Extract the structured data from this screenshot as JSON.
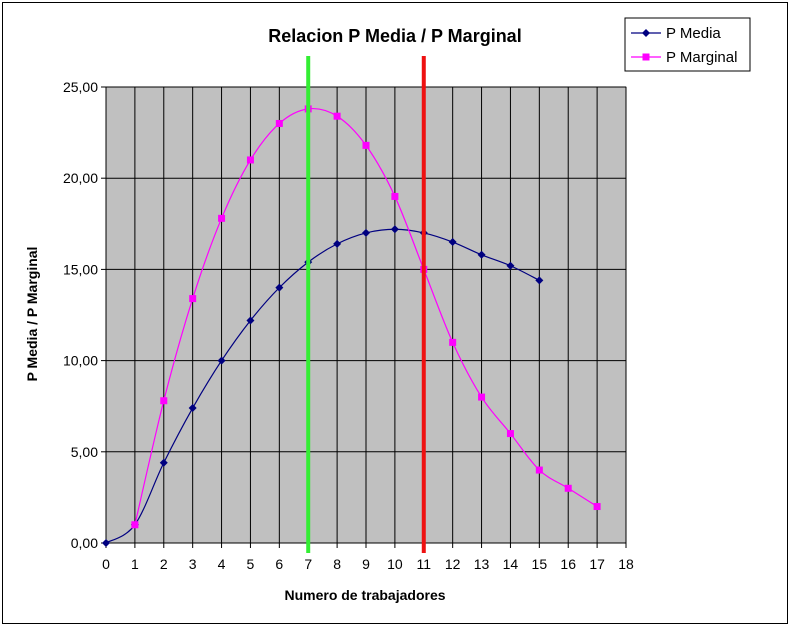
{
  "chart_data": {
    "type": "line",
    "title": "Relacion P Media / P Marginal",
    "xlabel": "Numero de trabajadores",
    "ylabel": "P Media / P Marginal",
    "xlim": [
      0,
      18
    ],
    "ylim": [
      0,
      25
    ],
    "x_ticks": [
      "0",
      "1",
      "2",
      "3",
      "4",
      "5",
      "6",
      "7",
      "8",
      "9",
      "10",
      "11",
      "12",
      "13",
      "14",
      "15",
      "16",
      "17",
      "18"
    ],
    "y_ticks": [
      "0,00",
      "5,00",
      "10,00",
      "15,00",
      "20,00",
      "25,00"
    ],
    "grid": true,
    "legend_position": "top-right",
    "series": [
      {
        "name": "P Media",
        "color": "#000080",
        "marker": "diamond",
        "x": [
          0,
          1,
          2,
          3,
          4,
          5,
          6,
          7,
          8,
          9,
          10,
          11,
          12,
          13,
          14,
          15
        ],
        "y": [
          0.0,
          1.0,
          4.4,
          7.4,
          10.0,
          12.2,
          14.0,
          15.4,
          16.4,
          17.0,
          17.2,
          17.0,
          16.5,
          15.8,
          15.2,
          14.4
        ]
      },
      {
        "name": "P Marginal",
        "color": "#ff00ff",
        "marker": "square",
        "x": [
          1,
          2,
          3,
          4,
          5,
          6,
          7,
          8,
          9,
          10,
          11,
          12,
          13,
          14,
          15,
          16,
          17
        ],
        "y": [
          1.0,
          7.8,
          13.4,
          17.8,
          21.0,
          23.0,
          23.8,
          23.4,
          21.8,
          19.0,
          15.0,
          11.0,
          8.0,
          6.0,
          4.0,
          3.0,
          2.0
        ]
      }
    ],
    "vertical_lines": [
      {
        "x": 7,
        "color": "#33ee33"
      },
      {
        "x": 11,
        "color": "#ee1111"
      }
    ],
    "plot_background": "#c0c0c0"
  }
}
